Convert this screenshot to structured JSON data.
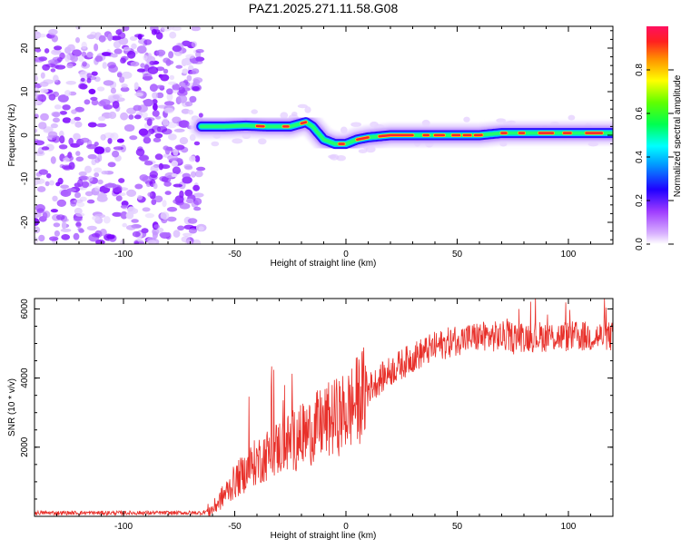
{
  "chart_data": [
    {
      "type": "heatmap",
      "title": "PAZ1.2025.271.11.58.G08",
      "xlabel": "Height of straight line (km)",
      "ylabel": "Frequency (Hz)",
      "xlim": [
        -140,
        120
      ],
      "ylim": [
        -25,
        25
      ],
      "x_ticks": [
        -100,
        -50,
        0,
        50,
        100
      ],
      "y_ticks": [
        -20,
        -10,
        0,
        10,
        20
      ],
      "noise_region_x": [
        -140,
        -65
      ],
      "ridge": {
        "x": [
          -65,
          -55,
          -45,
          -35,
          -25,
          -18,
          -15,
          -10,
          -5,
          0,
          5,
          10,
          20,
          40,
          60,
          70,
          90,
          110,
          120
        ],
        "y": [
          2,
          2,
          2.2,
          2,
          2,
          3,
          2,
          -1,
          -2,
          -2,
          -1,
          -0.5,
          0,
          0,
          0,
          0.5,
          0.5,
          0.5,
          0.5
        ]
      },
      "colorbar": {
        "label": "Normalized spectral amplitude",
        "range": [
          0.0,
          1.0
        ],
        "ticks": [
          "0.0",
          "0.2",
          "0.4",
          "0.6",
          "0.8"
        ]
      }
    },
    {
      "type": "line",
      "xlabel": "Height of straight line (km)",
      "ylabel": "SNR (10 * v/v)",
      "xlim": [
        -140,
        120
      ],
      "ylim": [
        0,
        6300
      ],
      "x_ticks": [
        -100,
        -50,
        0,
        50,
        100
      ],
      "y_ticks": [
        2000,
        4000,
        6000
      ],
      "series_color": "#e8302a",
      "trend": {
        "x": [
          -140,
          -65,
          -60,
          -55,
          -50,
          -40,
          -30,
          -20,
          -10,
          0,
          10,
          20,
          30,
          40,
          50,
          60,
          80,
          100,
          120
        ],
        "y": [
          100,
          100,
          200,
          600,
          1000,
          1600,
          2000,
          2300,
          2700,
          3000,
          3700,
          4200,
          4600,
          4900,
          5100,
          5200,
          5200,
          5200,
          5200
        ]
      }
    }
  ]
}
